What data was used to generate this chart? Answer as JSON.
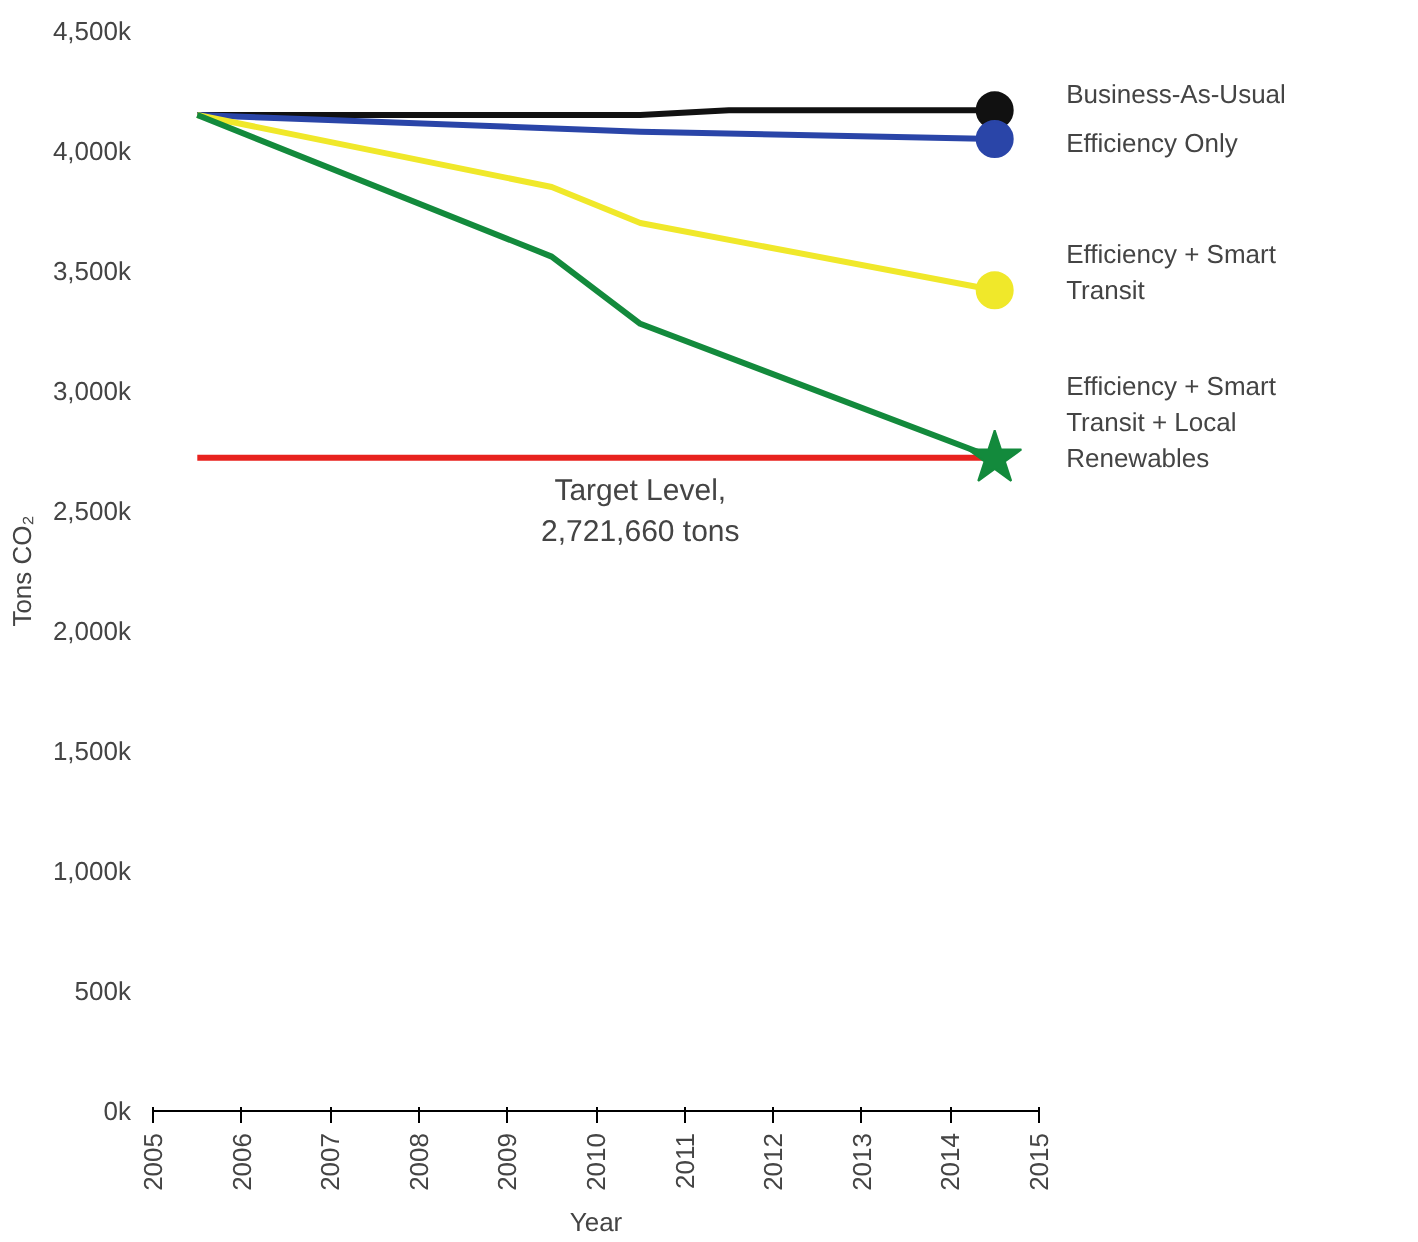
{
  "chart_data": {
    "type": "line",
    "xlabel": "Year",
    "ylabel": "Tons CO₂",
    "xlim": [
      2005,
      2015
    ],
    "xticks": [
      2005,
      2006,
      2007,
      2008,
      2009,
      2010,
      2011,
      2012,
      2013,
      2014,
      2015
    ],
    "ylim": [
      0,
      4500
    ],
    "yticks": [
      {
        "value": 0,
        "label": "0k"
      },
      {
        "value": 500,
        "label": "500k"
      },
      {
        "value": 1000,
        "label": "1,000k"
      },
      {
        "value": 1500,
        "label": "1,500k"
      },
      {
        "value": 2000,
        "label": "2,000k"
      },
      {
        "value": 2500,
        "label": "2,500k"
      },
      {
        "value": 3000,
        "label": "3,000k"
      },
      {
        "value": 3500,
        "label": "3,500k"
      },
      {
        "value": 4000,
        "label": "4,000k"
      },
      {
        "value": 4500,
        "label": "4,500k"
      }
    ],
    "grid": false,
    "legend": false,
    "series": [
      {
        "name": "Business-As-Usual",
        "color": "#111111",
        "x": [
          2005.5,
          2010.5,
          2011.5,
          2014.5
        ],
        "values": [
          4150,
          4150,
          4170,
          4170
        ]
      },
      {
        "name": "Efficiency Only",
        "color": "#2a45a8",
        "x": [
          2005.5,
          2010.5,
          2014.5
        ],
        "values": [
          4150,
          4080,
          4050
        ]
      },
      {
        "name": "Efficiency + Smart\nTransit",
        "color": "#f0e82a",
        "x": [
          2005.5,
          2009.5,
          2010.5,
          2014.5
        ],
        "values": [
          4150,
          3850,
          3700,
          3420
        ]
      },
      {
        "name": "Efficiency + Smart\nTransit + Local\nRenewables",
        "color": "#138a3c",
        "x": [
          2005.5,
          2009.5,
          2010.5,
          2014.5
        ],
        "values": [
          4150,
          3560,
          3280,
          2720
        ]
      },
      {
        "type": "scatter",
        "color": "#111111",
        "marker": "circle",
        "x": [
          2014.5
        ],
        "values": [
          4170
        ]
      },
      {
        "type": "scatter",
        "color": "#2a45a8",
        "marker": "circle",
        "x": [
          2014.5
        ],
        "values": [
          4050
        ]
      },
      {
        "type": "scatter",
        "color": "#f0e82a",
        "marker": "circle",
        "x": [
          2014.5
        ],
        "values": [
          3420
        ]
      },
      {
        "type": "scatter",
        "color": "#138a3c",
        "marker": "star",
        "x": [
          2014.5
        ],
        "values": [
          2720
        ]
      }
    ],
    "ref_lines": [
      {
        "axis": "y",
        "value": 2721.66,
        "label": "Target Level,\n2,721,660 tons",
        "color": "#e8221e"
      }
    ]
  }
}
